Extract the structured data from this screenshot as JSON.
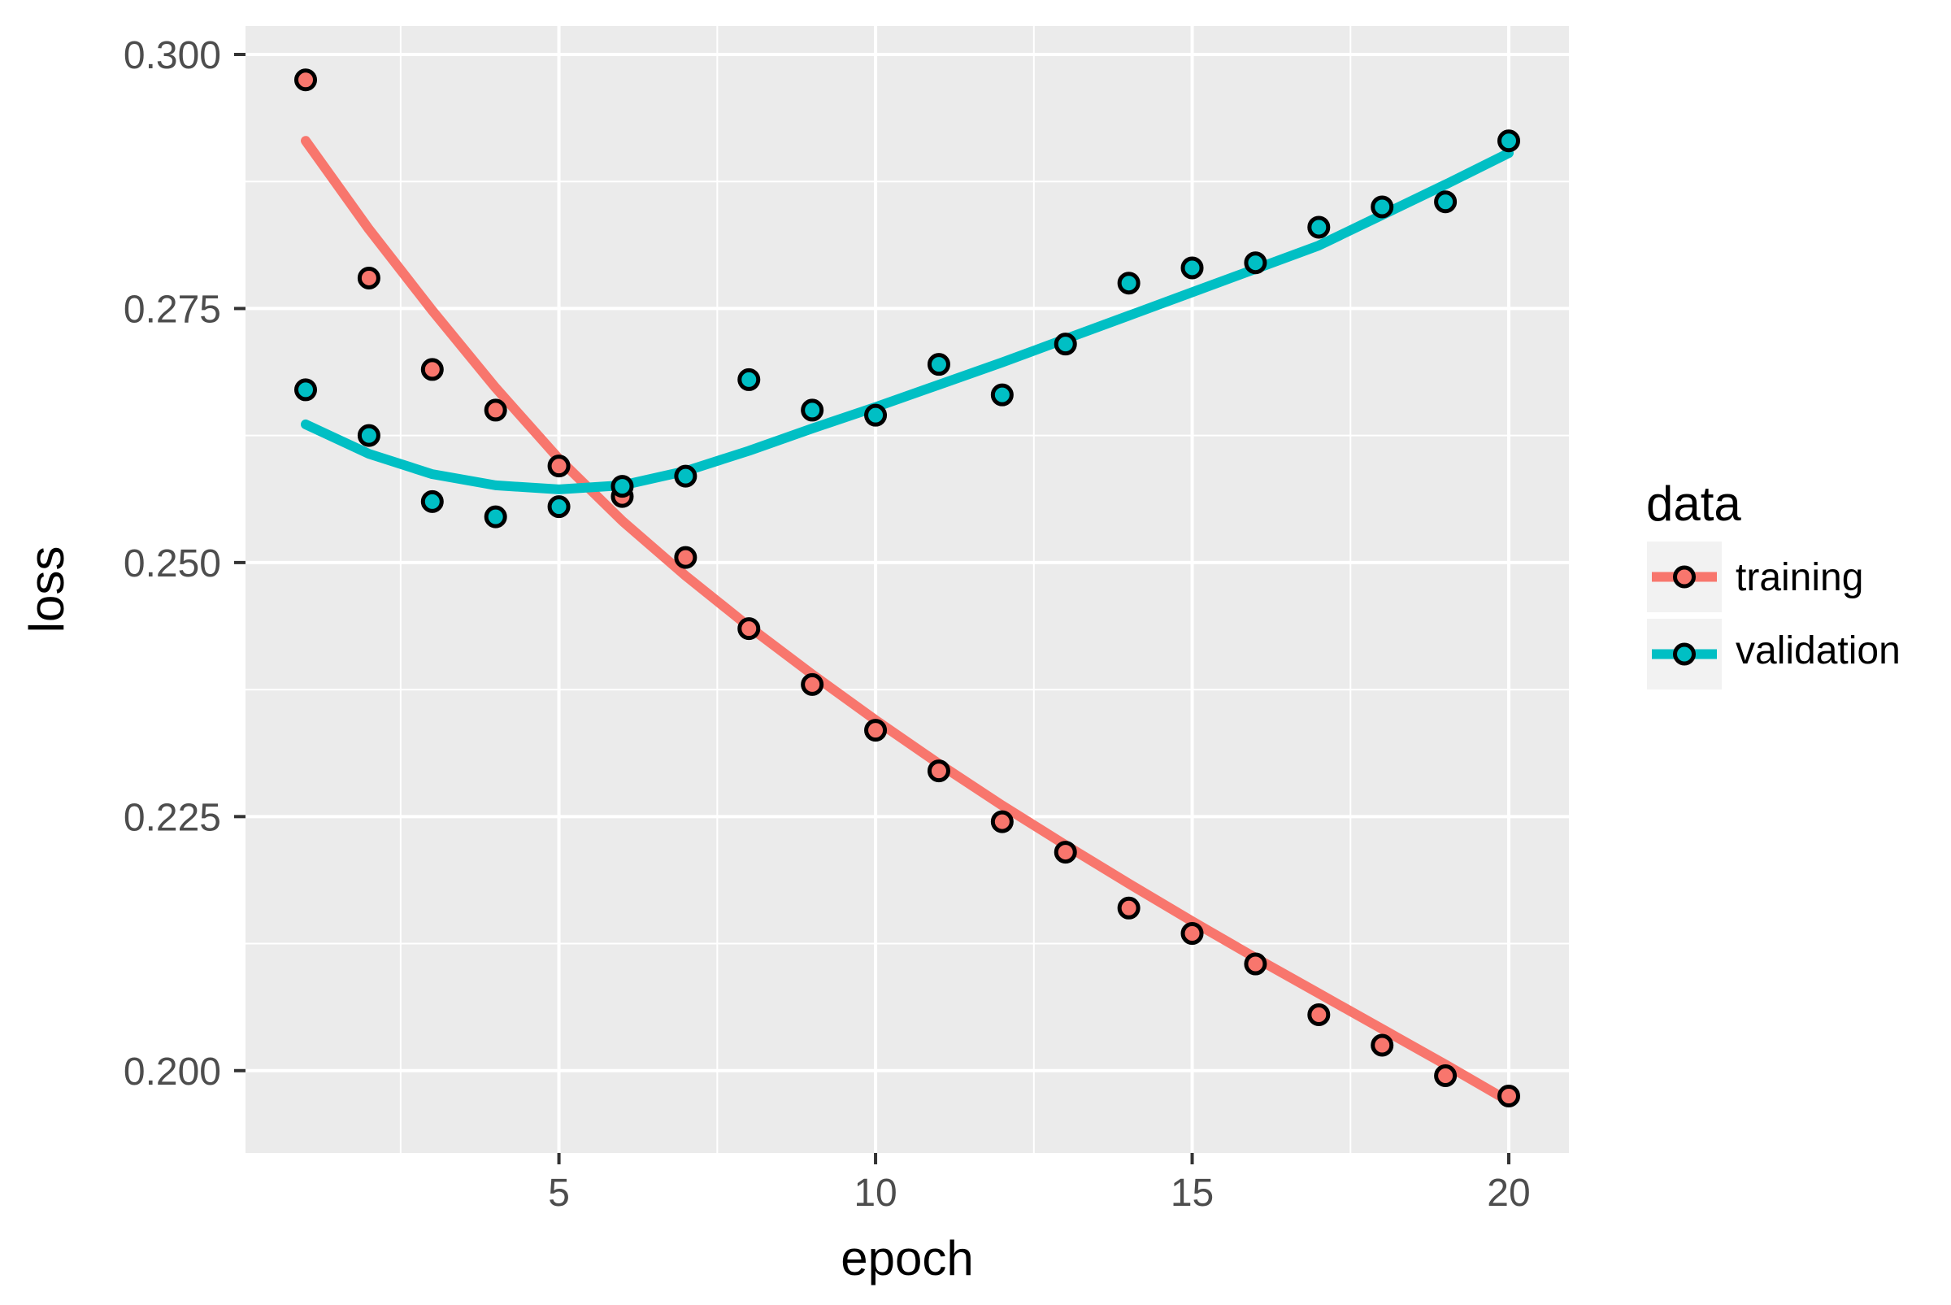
{
  "chart_data": {
    "type": "scatter",
    "title": "",
    "xlabel": "epoch",
    "ylabel": "loss",
    "x": [
      1,
      2,
      3,
      4,
      5,
      6,
      7,
      8,
      9,
      10,
      11,
      12,
      13,
      14,
      15,
      16,
      17,
      18,
      19,
      20
    ],
    "series": [
      {
        "name": "training",
        "color": "#F8766D",
        "values": [
          0.2975,
          0.278,
          0.269,
          0.265,
          0.2595,
          0.2565,
          0.2505,
          0.2435,
          0.238,
          0.2335,
          0.2295,
          0.2245,
          0.2215,
          0.216,
          0.2135,
          0.2105,
          0.2055,
          0.2025,
          0.1995,
          0.1975
        ],
        "smooth": [
          0.2915,
          0.2828,
          0.2748,
          0.2672,
          0.2602,
          0.2541,
          0.2487,
          0.2437,
          0.239,
          0.2345,
          0.2302,
          0.2261,
          0.2222,
          0.2184,
          0.2147,
          0.2111,
          0.2076,
          0.2041,
          0.2006,
          0.197
        ]
      },
      {
        "name": "validation",
        "color": "#00BFC4",
        "values": [
          0.267,
          0.2625,
          0.256,
          0.2545,
          0.2555,
          0.2575,
          0.2585,
          0.268,
          0.265,
          0.2645,
          0.2695,
          0.2665,
          0.2715,
          0.2775,
          0.279,
          0.2795,
          0.283,
          0.285,
          0.2855,
          0.2915
        ],
        "smooth": [
          0.2636,
          0.2607,
          0.2587,
          0.2576,
          0.2572,
          0.2576,
          0.259,
          0.261,
          0.2632,
          0.2653,
          0.2675,
          0.2697,
          0.272,
          0.2743,
          0.2766,
          0.2789,
          0.2812,
          0.2842,
          0.2872,
          0.2903
        ]
      }
    ],
    "xticks": [
      5,
      10,
      15,
      20
    ],
    "xtick_labels": [
      "5",
      "10",
      "15",
      "20"
    ],
    "yticks": [
      0.2,
      0.225,
      0.25,
      0.275,
      0.3
    ],
    "ytick_labels": [
      "0.200",
      "0.225",
      "0.250",
      "0.275",
      "0.300"
    ],
    "x_minor": [
      2.5,
      7.5,
      12.5,
      17.5
    ],
    "y_minor": [
      0.2125,
      0.2375,
      0.2625,
      0.2875
    ],
    "xlim": [
      0.05,
      20.95
    ],
    "ylim": [
      0.1919,
      0.3028
    ],
    "grid": "on",
    "legend_position": "right",
    "colors": {
      "panel_background": "#EBEBEB",
      "gridline": "#FFFFFF",
      "tick_mark": "#333333",
      "tick_label": "#4D4D4D",
      "marker_outline": "#000000"
    }
  },
  "legend": {
    "title": "data",
    "key_background": "#F2F2F2",
    "entries": [
      {
        "label": "training",
        "color": "#F8766D"
      },
      {
        "label": "validation",
        "color": "#00BFC4"
      }
    ]
  }
}
